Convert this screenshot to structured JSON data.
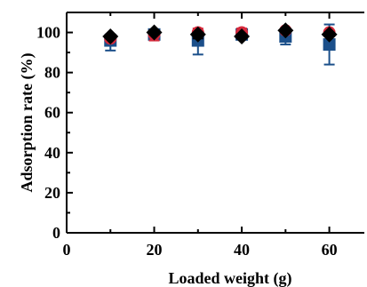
{
  "chart_data": {
    "type": "scatter",
    "xlabel": "Loaded weight (g)",
    "ylabel": "Adsorption rate (%)",
    "xlim": [
      0,
      68
    ],
    "ylim": [
      0,
      110
    ],
    "x_ticks": [
      "0",
      "20",
      "40",
      "60"
    ],
    "y_ticks": [
      "0",
      "20",
      "40",
      "60",
      "80",
      "100"
    ],
    "grid": false,
    "series": [
      {
        "marker": "square",
        "color": "#1b4f8a",
        "x": [
          10,
          20,
          30,
          40,
          50,
          60
        ],
        "values": [
          96,
          99,
          96,
          99,
          98,
          94
        ],
        "error_low": [
          91,
          97,
          89,
          97,
          94,
          84
        ],
        "error_high": [
          99,
          100,
          99,
          100,
          101,
          104
        ]
      },
      {
        "marker": "circle",
        "color": "#d62a3c",
        "x": [
          10,
          20,
          30,
          40,
          50,
          60
        ],
        "values": [
          97,
          99,
          100,
          100,
          101,
          100
        ],
        "error_low": [
          96,
          96,
          98,
          98,
          100,
          98
        ],
        "error_high": [
          98,
          101,
          102,
          102,
          102,
          101
        ]
      },
      {
        "marker": "diamond",
        "color": "#000000",
        "x": [
          10,
          20,
          30,
          40,
          50,
          60
        ],
        "values": [
          98,
          100,
          99,
          98,
          101,
          99
        ],
        "error_low": [
          97,
          99,
          97,
          97,
          100,
          98
        ],
        "error_high": [
          99,
          101,
          100,
          99,
          102,
          100
        ]
      }
    ]
  }
}
